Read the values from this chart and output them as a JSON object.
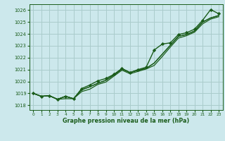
{
  "title": "Graphe pression niveau de la mer (hPa)",
  "bg_color": "#cce8ec",
  "grid_color": "#aacccc",
  "line_color": "#1a5c1a",
  "marker_color": "#1a5c1a",
  "xlim": [
    -0.5,
    23.5
  ],
  "ylim": [
    1017.6,
    1026.5
  ],
  "yticks": [
    1018,
    1019,
    1020,
    1021,
    1022,
    1023,
    1024,
    1025,
    1026
  ],
  "xticks": [
    0,
    1,
    2,
    3,
    4,
    5,
    6,
    7,
    8,
    9,
    10,
    11,
    12,
    13,
    14,
    15,
    16,
    17,
    18,
    19,
    20,
    21,
    22,
    23
  ],
  "series": [
    [
      1019.0,
      1018.75,
      1018.8,
      1018.5,
      1018.75,
      1018.55,
      1019.3,
      1019.55,
      1019.85,
      1020.1,
      1020.55,
      1021.05,
      1020.75,
      1020.95,
      1021.1,
      1021.55,
      1022.3,
      1023.05,
      1023.8,
      1023.95,
      1024.25,
      1025.0,
      1025.35,
      1025.55
    ],
    [
      1019.0,
      1018.75,
      1018.8,
      1018.5,
      1018.75,
      1018.55,
      1019.3,
      1019.55,
      1019.85,
      1020.1,
      1020.55,
      1021.05,
      1020.75,
      1020.95,
      1021.1,
      1021.55,
      1022.3,
      1023.05,
      1023.8,
      1023.95,
      1024.25,
      1025.0,
      1025.35,
      1025.55
    ],
    [
      1019.0,
      1018.75,
      1018.8,
      1018.5,
      1018.75,
      1018.55,
      1019.4,
      1019.7,
      1020.05,
      1020.25,
      1020.6,
      1021.1,
      1020.75,
      1021.0,
      1021.2,
      1022.65,
      1023.15,
      1023.25,
      1023.95,
      1024.1,
      1024.4,
      1025.15,
      1026.05,
      1025.7
    ],
    [
      1019.0,
      1018.75,
      1018.8,
      1018.5,
      1018.55,
      1018.55,
      1019.15,
      1019.35,
      1019.75,
      1019.95,
      1020.45,
      1020.95,
      1020.65,
      1020.85,
      1021.05,
      1021.35,
      1022.1,
      1022.9,
      1023.65,
      1023.85,
      1024.15,
      1024.85,
      1025.25,
      1025.45
    ]
  ]
}
